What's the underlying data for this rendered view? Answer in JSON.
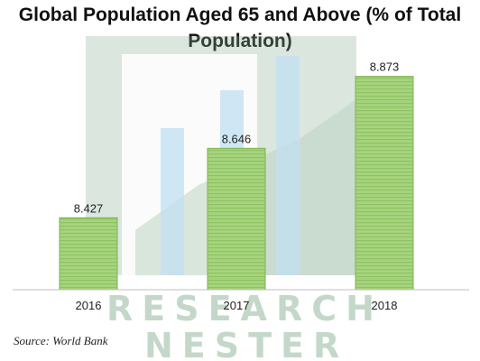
{
  "chart_data": {
    "type": "bar",
    "title": "Global Population Aged 65 and Above (% of Total Population)",
    "title_lines": [
      "Global Population Aged 65 and Above (% of Total",
      "Population)"
    ],
    "categories": [
      "2016",
      "2017",
      "2018"
    ],
    "values": [
      8.427,
      8.646,
      8.873
    ],
    "value_labels": [
      "8.427",
      "8.646",
      "8.873"
    ],
    "xlabel": "",
    "ylabel": "",
    "ylim": [
      8.2,
      9.0
    ],
    "grid": false,
    "legend": "none",
    "colors": {
      "bar": "#a3d17a",
      "bar_stripe": "#8cbf60",
      "bar_border": "#7fb257",
      "axis": "#bfbfbf"
    }
  },
  "source": "Source: World Bank",
  "watermark": {
    "line1": "RESEARCH",
    "line2": "NESTER",
    "color": "#7aa585"
  }
}
